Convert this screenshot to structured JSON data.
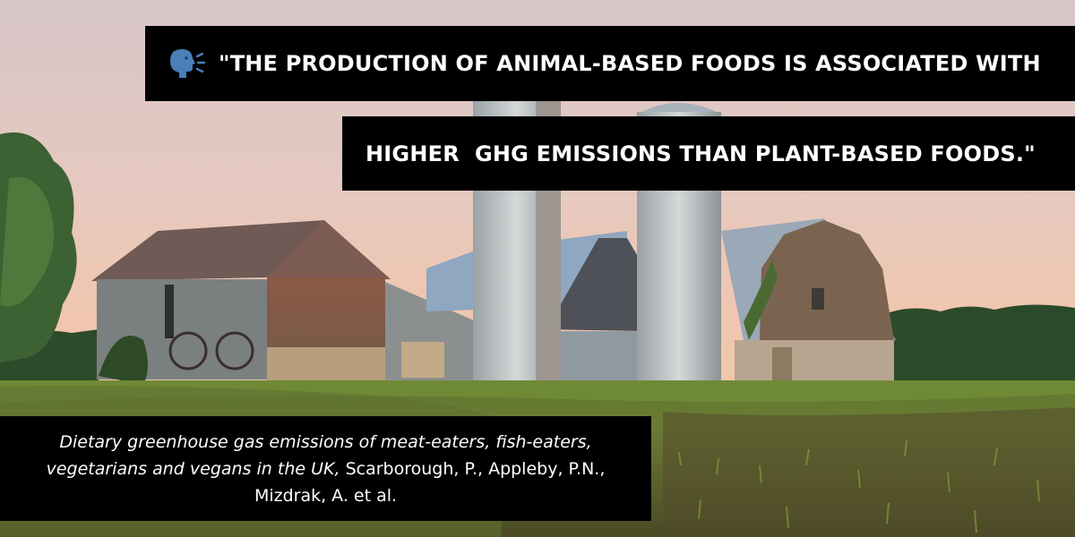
{
  "quote": {
    "line1": "\"THE PRODUCTION OF ANIMAL-BASED FOODS IS ASSOCIATED WITH",
    "line2": "HIGHER  GHG EMISSIONS THAN PLANT-BASED FOODS.\"",
    "icon": "speaking-head-icon"
  },
  "citation": {
    "title": "Dietary greenhouse gas emissions of meat-eaters, fish-eaters, vegetarians and vegans in the UK,",
    "authors": "Scarborough, P., Appleby, P.N., Mizdrak, A. et al."
  },
  "colors": {
    "banner_background": "#000000",
    "banner_text": "#ffffff"
  }
}
